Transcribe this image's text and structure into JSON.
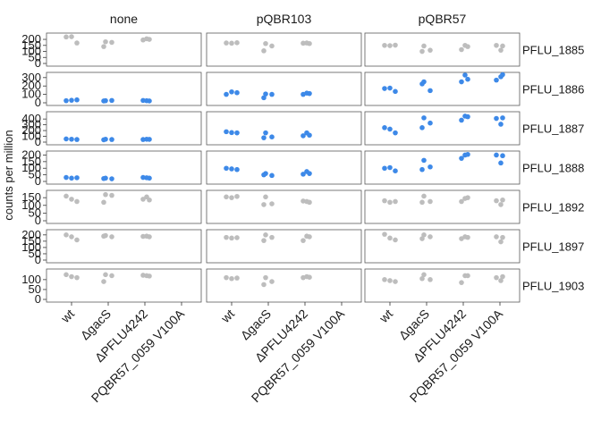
{
  "chart_data": {
    "type": "scatter",
    "ylabel": "counts per million",
    "columns": [
      "none",
      "pQBR103",
      "pQBR57"
    ],
    "x_categories": [
      "wt",
      "ΔgacS",
      "ΔPFLU4242",
      "PQBR57_0059 V100A"
    ],
    "colors": {
      "highlight": "#3d89e8",
      "background": "#bdbdbd"
    },
    "rows": [
      {
        "gene": "PFLU_1885",
        "ylim": [
          0,
          230
        ],
        "ticks": [
          0,
          50,
          100,
          150,
          200
        ],
        "highlight": false,
        "points": {
          "none": [
            [
              0,
              220
            ],
            [
              0,
              222
            ],
            [
              0,
              170
            ],
            [
              1,
              180
            ],
            [
              1,
              175
            ],
            [
              1,
              140
            ],
            [
              2,
              205
            ],
            [
              2,
              200
            ],
            [
              2,
              195
            ]
          ],
          "pQBR103": [
            [
              0,
              170
            ],
            [
              0,
              168
            ],
            [
              0,
              172
            ],
            [
              1,
              165
            ],
            [
              1,
              145
            ],
            [
              1,
              105
            ],
            [
              2,
              170
            ],
            [
              2,
              165
            ],
            [
              2,
              168
            ]
          ],
          "pQBR57": [
            [
              0,
              150
            ],
            [
              0,
              148
            ],
            [
              0,
              152
            ],
            [
              1,
              145
            ],
            [
              1,
              110
            ],
            [
              1,
              100
            ],
            [
              2,
              150
            ],
            [
              2,
              140
            ],
            [
              2,
              115
            ],
            [
              3,
              145
            ],
            [
              3,
              150
            ],
            [
              3,
              110
            ]
          ]
        }
      },
      {
        "gene": "PFLU_1886",
        "ylim": [
          0,
          330
        ],
        "ticks": [
          0,
          100,
          200,
          300
        ],
        "highlight": true,
        "points": {
          "none": [
            [
              0,
              25
            ],
            [
              0,
              30
            ],
            [
              0,
              35
            ],
            [
              1,
              25
            ],
            [
              1,
              28
            ],
            [
              1,
              22
            ],
            [
              2,
              25
            ],
            [
              2,
              22
            ],
            [
              2,
              28
            ]
          ],
          "pQBR103": [
            [
              0,
              100
            ],
            [
              0,
              130
            ],
            [
              0,
              120
            ],
            [
              1,
              105
            ],
            [
              1,
              100
            ],
            [
              1,
              60
            ],
            [
              2,
              115
            ],
            [
              2,
              110
            ],
            [
              2,
              100
            ]
          ],
          "pQBR57": [
            [
              0,
              170
            ],
            [
              0,
              175
            ],
            [
              0,
              135
            ],
            [
              1,
              250
            ],
            [
              1,
              145
            ],
            [
              1,
              225
            ],
            [
              2,
              330
            ],
            [
              2,
              280
            ],
            [
              2,
              250
            ],
            [
              3,
              335
            ],
            [
              3,
              270
            ],
            [
              3,
              310
            ]
          ]
        }
      },
      {
        "gene": "PFLU_1887",
        "ylim": [
          0,
          480
        ],
        "ticks": [
          0,
          100,
          200,
          300,
          400
        ],
        "highlight": true,
        "points": {
          "none": [
            [
              0,
              55
            ],
            [
              0,
              50
            ],
            [
              0,
              45
            ],
            [
              1,
              50
            ],
            [
              1,
              45
            ],
            [
              1,
              40
            ],
            [
              2,
              50
            ],
            [
              2,
              48
            ],
            [
              2,
              45
            ]
          ],
          "pQBR103": [
            [
              0,
              180
            ],
            [
              0,
              165
            ],
            [
              0,
              160
            ],
            [
              1,
              160
            ],
            [
              1,
              90
            ],
            [
              1,
              75
            ],
            [
              2,
              160
            ],
            [
              2,
              120
            ],
            [
              2,
              110
            ]
          ],
          "pQBR57": [
            [
              0,
              250
            ],
            [
              0,
              225
            ],
            [
              0,
              160
            ],
            [
              1,
              420
            ],
            [
              1,
              330
            ],
            [
              1,
              250
            ],
            [
              2,
              450
            ],
            [
              2,
              440
            ],
            [
              2,
              380
            ],
            [
              3,
              420
            ],
            [
              3,
              410
            ],
            [
              3,
              310
            ]
          ]
        }
      },
      {
        "gene": "PFLU_1888",
        "ylim": [
          0,
          210
        ],
        "ticks": [
          0,
          50,
          100,
          150,
          200
        ],
        "highlight": true,
        "points": {
          "none": [
            [
              0,
              30
            ],
            [
              0,
              25
            ],
            [
              0,
              28
            ],
            [
              1,
              25
            ],
            [
              1,
              20
            ],
            [
              1,
              22
            ],
            [
              2,
              28
            ],
            [
              2,
              25
            ],
            [
              2,
              30
            ]
          ],
          "pQBR103": [
            [
              0,
              100
            ],
            [
              0,
              95
            ],
            [
              0,
              90
            ],
            [
              1,
              60
            ],
            [
              1,
              45
            ],
            [
              1,
              50
            ],
            [
              2,
              75
            ],
            [
              2,
              60
            ],
            [
              2,
              55
            ]
          ],
          "pQBR57": [
            [
              0,
              100
            ],
            [
              0,
              105
            ],
            [
              0,
              80
            ],
            [
              1,
              160
            ],
            [
              1,
              110
            ],
            [
              1,
              90
            ],
            [
              2,
              200
            ],
            [
              2,
              205
            ],
            [
              2,
              175
            ],
            [
              3,
              195
            ],
            [
              3,
              200
            ],
            [
              3,
              140
            ]
          ]
        }
      },
      {
        "gene": "PFLU_1892",
        "ylim": [
          0,
          180
        ],
        "ticks": [
          0,
          50,
          100,
          150
        ],
        "highlight": false,
        "points": {
          "none": [
            [
              0,
              160
            ],
            [
              0,
              140
            ],
            [
              0,
              125
            ],
            [
              1,
              170
            ],
            [
              1,
              165
            ],
            [
              1,
              120
            ],
            [
              2,
              155
            ],
            [
              2,
              135
            ],
            [
              2,
              140
            ]
          ],
          "pQBR103": [
            [
              0,
              155
            ],
            [
              0,
              150
            ],
            [
              0,
              158
            ],
            [
              1,
              155
            ],
            [
              1,
              110
            ],
            [
              1,
              105
            ],
            [
              2,
              125
            ],
            [
              2,
              120
            ],
            [
              2,
              128
            ]
          ],
          "pQBR57": [
            [
              0,
              130
            ],
            [
              0,
              120
            ],
            [
              0,
              125
            ],
            [
              1,
              160
            ],
            [
              1,
              125
            ],
            [
              1,
              120
            ],
            [
              2,
              145
            ],
            [
              2,
              150
            ],
            [
              2,
              125
            ],
            [
              3,
              135
            ],
            [
              3,
              130
            ],
            [
              3,
              105
            ]
          ]
        }
      },
      {
        "gene": "PFLU_1897",
        "ylim": [
          0,
          220
        ],
        "ticks": [
          0,
          50,
          100,
          150,
          200
        ],
        "highlight": false,
        "points": {
          "none": [
            [
              0,
              200
            ],
            [
              0,
              185
            ],
            [
              0,
              160
            ],
            [
              1,
              195
            ],
            [
              1,
              185
            ],
            [
              1,
              190
            ],
            [
              2,
              190
            ],
            [
              2,
              185
            ],
            [
              2,
              188
            ]
          ],
          "pQBR103": [
            [
              0,
              180
            ],
            [
              0,
              175
            ],
            [
              0,
              178
            ],
            [
              1,
              200
            ],
            [
              1,
              180
            ],
            [
              1,
              155
            ],
            [
              2,
              190
            ],
            [
              2,
              185
            ],
            [
              2,
              155
            ]
          ],
          "pQBR57": [
            [
              0,
              205
            ],
            [
              0,
              175
            ],
            [
              0,
              160
            ],
            [
              1,
              200
            ],
            [
              1,
              185
            ],
            [
              1,
              170
            ],
            [
              2,
              185
            ],
            [
              2,
              180
            ],
            [
              2,
              170
            ],
            [
              3,
              180
            ],
            [
              3,
              185
            ],
            [
              3,
              145
            ]
          ]
        }
      },
      {
        "gene": "PFLU_1903",
        "ylim": [
          0,
          140
        ],
        "ticks": [
          0,
          50,
          100
        ],
        "highlight": false,
        "points": {
          "none": [
            [
              0,
              125
            ],
            [
              0,
              115
            ],
            [
              0,
              110
            ],
            [
              1,
              125
            ],
            [
              1,
              120
            ],
            [
              1,
              90
            ],
            [
              2,
              120
            ],
            [
              2,
              118
            ],
            [
              2,
              122
            ]
          ],
          "pQBR103": [
            [
              0,
              110
            ],
            [
              0,
              105
            ],
            [
              0,
              108
            ],
            [
              1,
              110
            ],
            [
              1,
              90
            ],
            [
              1,
              75
            ],
            [
              2,
              115
            ],
            [
              2,
              112
            ],
            [
              2,
              110
            ]
          ],
          "pQBR57": [
            [
              0,
              100
            ],
            [
              0,
              95
            ],
            [
              0,
              90
            ],
            [
              1,
              125
            ],
            [
              1,
              100
            ],
            [
              1,
              105
            ],
            [
              2,
              120
            ],
            [
              2,
              120
            ],
            [
              2,
              85
            ],
            [
              3,
              115
            ],
            [
              3,
              110
            ],
            [
              3,
              95
            ]
          ]
        }
      }
    ]
  }
}
